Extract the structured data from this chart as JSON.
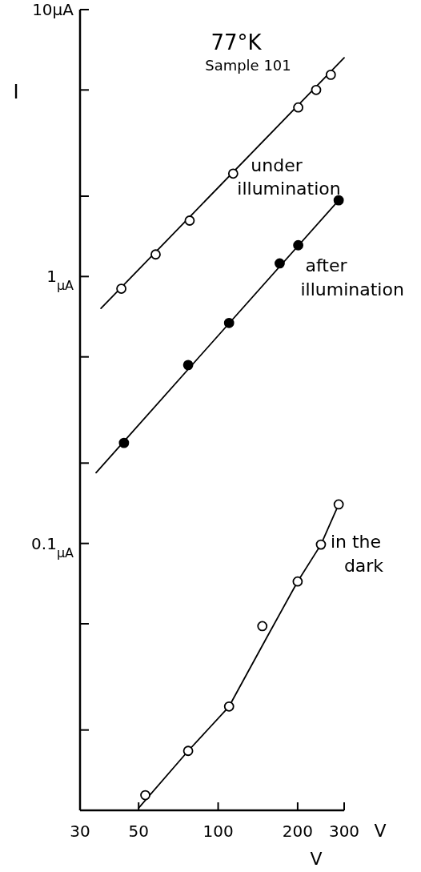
{
  "chart_data": {
    "type": "scatter",
    "title": "77°K",
    "subtitle": "Sample 101",
    "xlabel": "V",
    "ylabel": "I",
    "log": "xy",
    "xlim": [
      30,
      300
    ],
    "ylim": [
      0.01,
      10
    ],
    "xticks": [
      30,
      50,
      100,
      200,
      300
    ],
    "yticks": [
      {
        "value": 10,
        "label": "10μA"
      },
      {
        "value": 5,
        "label": null
      },
      {
        "value": 2,
        "label": null
      },
      {
        "value": 1,
        "label": "1$_{μA}$"
      },
      {
        "value": 0.5,
        "label": null
      },
      {
        "value": 0.2,
        "label": null
      },
      {
        "value": 0.1,
        "label": "0.1$_{μA}$"
      },
      {
        "value": 0.05,
        "label": null
      },
      {
        "value": 0.02,
        "label": null
      }
    ],
    "annotations": [
      "V"
    ],
    "series": [
      {
        "type": "line",
        "color": "#000000",
        "marker": "none",
        "x": [
          36,
          300
        ],
        "values": [
          0.76,
          6.6
        ]
      },
      {
        "name": "under illumination",
        "color": "#000000",
        "marker": "circle",
        "x": [
          43,
          58,
          78,
          114,
          201,
          235,
          267
        ],
        "values": [
          0.9,
          1.21,
          1.62,
          2.43,
          4.3,
          5.0,
          5.7
        ]
      },
      {
        "type": "line",
        "color": "#000000",
        "marker": "none",
        "x": [
          34.5,
          286
        ],
        "values": [
          0.184,
          1.93
        ]
      },
      {
        "name": "after illumination",
        "color": "#000000",
        "marker": "circle",
        "x": [
          44,
          77,
          110,
          171,
          201,
          286
        ],
        "values": [
          0.238,
          0.466,
          0.67,
          1.12,
          1.31,
          1.93
        ]
      },
      {
        "type": "line",
        "color": "#000000",
        "marker": "none",
        "x": [
          50,
          77,
          110,
          152,
          200,
          245,
          286
        ],
        "values": [
          0.0102,
          0.0167,
          0.0245,
          0.044,
          0.072,
          0.099,
          0.14
        ]
      },
      {
        "name": "in the dark",
        "color": "#000000",
        "marker": "circle",
        "x": [
          53,
          77,
          110,
          147,
          200,
          245,
          286
        ],
        "values": [
          0.0114,
          0.0167,
          0.0245,
          0.049,
          0.072,
          0.099,
          0.14
        ]
      }
    ]
  }
}
